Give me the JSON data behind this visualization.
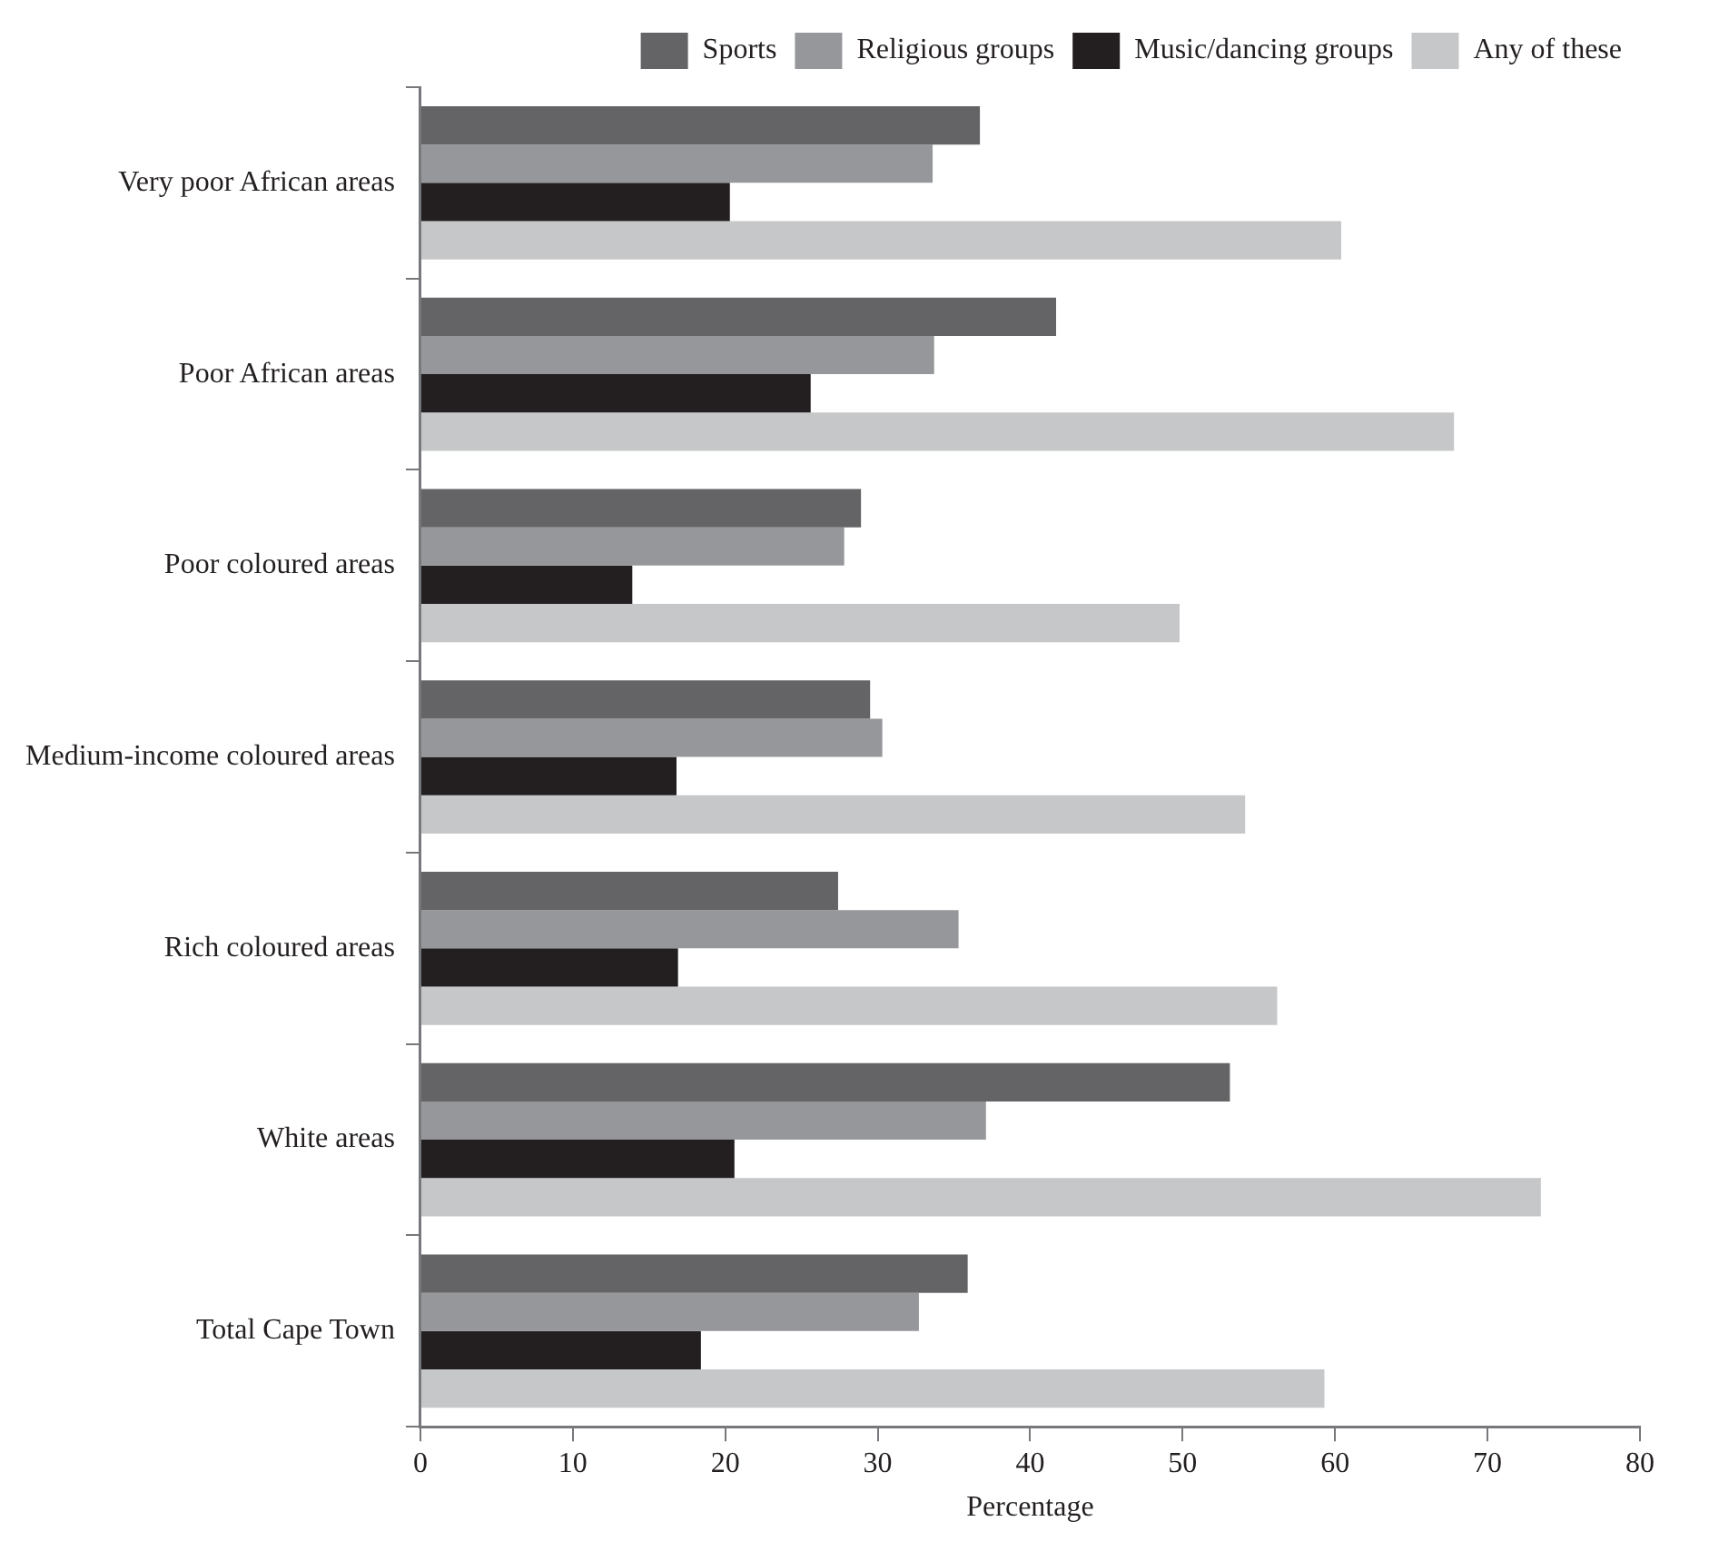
{
  "chart_data": {
    "type": "bar",
    "orientation": "horizontal",
    "xlabel": "Percentage",
    "categories": [
      "Very poor African areas",
      "Poor African areas",
      "Poor coloured areas",
      "Medium-income coloured areas",
      "Rich coloured areas",
      "White areas",
      "Total Cape Town"
    ],
    "series": [
      {
        "name": "Sports",
        "color": "#646466",
        "values": [
          36.7,
          41.7,
          28.9,
          29.5,
          27.4,
          53.1,
          35.9
        ]
      },
      {
        "name": "Religious groups",
        "color": "#96979a",
        "values": [
          33.6,
          33.7,
          27.8,
          30.3,
          35.3,
          37.1,
          32.7
        ]
      },
      {
        "name": "Music/dancing groups",
        "color": "#231f20",
        "values": [
          20.3,
          25.6,
          13.9,
          16.8,
          16.9,
          20.6,
          18.4
        ]
      },
      {
        "name": "Any of these",
        "color": "#c6c7c9",
        "values": [
          60.4,
          67.8,
          49.8,
          54.1,
          56.2,
          73.5,
          59.3
        ]
      }
    ],
    "xlim": [
      0,
      80
    ],
    "xticks": [
      0,
      10,
      20,
      30,
      40,
      50,
      60,
      70,
      80
    ],
    "grid": false,
    "legend": "top right"
  }
}
